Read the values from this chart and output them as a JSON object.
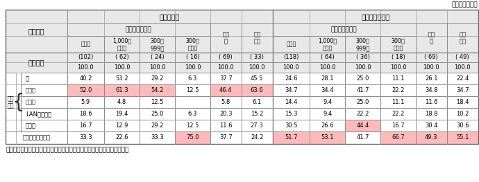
{
  "top_right_label": "－（社），％－",
  "note": "〔注〕　最も一般的な１人部屋に設置されているものを回答いただいた。",
  "sha_yu": "社　　　有",
  "kari_age": "借　り　上　げ",
  "ku_bun": "区　　分",
  "zen_san_gyo": "全　　産　　業",
  "seizo": "製造",
  "hisei": "非製",
  "kimosu": "規模計",
  "sen_ijo": "1,000人\n以　上",
  "sanbyaku_999": "300～\n999人",
  "sanbyaku_miman": "300人\n未　満",
  "gyo": "業",
  "zogyou": "造業",
  "gokei_label": "合　　計",
  "setchiari": "設置\nあり",
  "tsukue": "机",
  "beddo": "ベッド",
  "terebi": "テレビ",
  "lan": "LANケーブル",
  "reizoko": "冷蔵庫",
  "izuremo": "いずれも設置なし",
  "gokei_row1": [
    "(102)",
    "( 62)",
    "( 24)",
    "( 16)",
    "( 69)",
    "( 33)",
    "(118)",
    "( 64)",
    "( 36)",
    "( 18)",
    "( 69)",
    "( 49)"
  ],
  "gokei_row2": [
    "100.0",
    "100.0",
    "100.0",
    "100.0",
    "100.0",
    "100.0",
    "100.0",
    "100.0",
    "100.0",
    "100.0",
    "100.0",
    "100.0"
  ],
  "data_rows": [
    {
      "values": [
        "40.2",
        "53.2",
        "29.2",
        "6.3",
        "37.7",
        "45.5",
        "24.6",
        "28.1",
        "25.0",
        "11.1",
        "26.1",
        "22.4"
      ],
      "highlight": []
    },
    {
      "values": [
        "52.0",
        "61.3",
        "54.2",
        "12.5",
        "46.4",
        "63.6",
        "34.7",
        "34.4",
        "41.7",
        "22.2",
        "34.8",
        "34.7"
      ],
      "highlight": [
        0,
        1,
        2,
        4,
        5
      ]
    },
    {
      "values": [
        "5.9",
        "4.8",
        "12.5",
        "",
        "5.8",
        "6.1",
        "14.4",
        "9.4",
        "25.0",
        "11.1",
        "11.6",
        "18.4"
      ],
      "highlight": []
    },
    {
      "values": [
        "18.6",
        "19.4",
        "25.0",
        "6.3",
        "20.3",
        "15.2",
        "15.3",
        "9.4",
        "22.2",
        "22.2",
        "18.8",
        "10.2"
      ],
      "highlight": []
    },
    {
      "values": [
        "16.7",
        "12.9",
        "29.2",
        "12.5",
        "11.6",
        "27.3",
        "30.5",
        "26.6",
        "44.4",
        "16.7",
        "30.4",
        "30.6"
      ],
      "highlight": [
        8
      ]
    },
    {
      "values": [
        "33.3",
        "22.6",
        "33.3",
        "75.0",
        "37.7",
        "24.2",
        "51.7",
        "53.1",
        "41.7",
        "66.7",
        "49.3",
        "55.1"
      ],
      "highlight": [
        3,
        6,
        7,
        9,
        10,
        11
      ]
    }
  ],
  "highlight_color": "#FFBBBB",
  "header_bg": "#E8E8E8",
  "bg_color": "#FFFFFF",
  "border_color": "#666666",
  "thin_color": "#999999"
}
